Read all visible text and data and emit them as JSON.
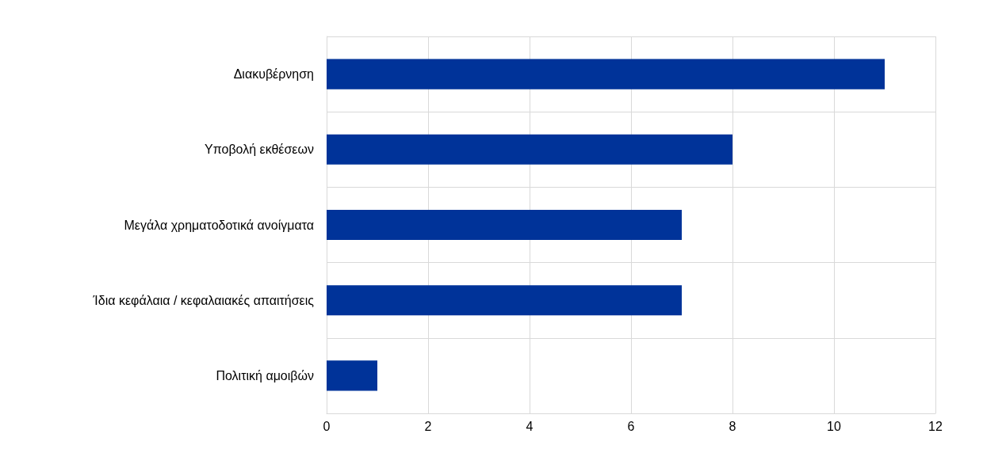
{
  "chart_data": {
    "type": "bar",
    "orientation": "horizontal",
    "categories": [
      "Διακυβέρνηση",
      "Υποβολή εκθέσεων",
      "Μεγάλα χρηματοδοτικά ανοίγματα",
      "Ίδια κεφάλαια / κεφαλαιακές απαιτήσεις",
      "Πολιτική αμοιβών"
    ],
    "values": [
      11,
      8,
      7,
      7,
      1
    ],
    "color": "#003399",
    "xlim": [
      0,
      12
    ],
    "xticks": [
      0,
      2,
      4,
      6,
      8,
      10,
      12
    ],
    "grid": true
  }
}
